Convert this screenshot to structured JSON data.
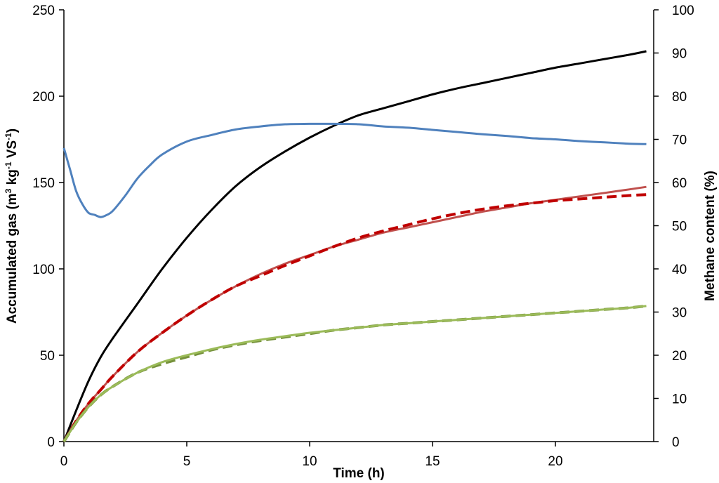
{
  "chart_data": {
    "type": "line",
    "title": "",
    "xlabel": "Time (h)",
    "ylabel": "Accumulated gas (m³ kg⁻¹ VS⁻¹)",
    "ylabel_parts": {
      "a": "Accumulated gas (m",
      "b": "3",
      "c": " kg",
      "d": "-1",
      "e": " VS",
      "f": "-1",
      "g": ")"
    },
    "y2label": "Methane content (%)",
    "xlim": [
      0,
      24
    ],
    "ylim": [
      0,
      250
    ],
    "y2lim": [
      0,
      100
    ],
    "x_ticks": [
      "0",
      "5",
      "10",
      "15",
      "20"
    ],
    "y_ticks": [
      "0",
      "50",
      "100",
      "150",
      "200",
      "250"
    ],
    "y2_ticks": [
      "0",
      "10",
      "20",
      "30",
      "40",
      "50",
      "60",
      "70",
      "80",
      "90",
      "100"
    ],
    "grid": false,
    "legend": "none",
    "series": [
      {
        "axis": "left",
        "style": "solid",
        "color": "#000000",
        "x": [
          0,
          0.5,
          1,
          1.5,
          2,
          3,
          4,
          5,
          6,
          7,
          8,
          9,
          10,
          11,
          12,
          13,
          14,
          15,
          16,
          17,
          18,
          19,
          20,
          21,
          22,
          23,
          23.7
        ],
        "y": [
          0,
          18,
          35,
          49,
          60,
          80,
          100,
          118,
          134,
          148,
          159,
          168,
          176,
          183,
          189,
          193,
          197,
          201,
          204.5,
          207.5,
          210.5,
          213.5,
          216.5,
          219,
          221.5,
          224,
          226
        ]
      },
      {
        "axis": "left",
        "style": "solid",
        "color": "#C0504D",
        "x": [
          0,
          0.5,
          1,
          1.5,
          2,
          3,
          4,
          5,
          6,
          7,
          8,
          9,
          10,
          11,
          12,
          13,
          14,
          15,
          16,
          17,
          18,
          19,
          20,
          21,
          22,
          23,
          23.7
        ],
        "y": [
          0,
          12,
          22,
          30,
          38,
          52,
          63,
          73,
          82,
          90,
          97,
          103,
          108,
          113,
          117,
          121,
          124,
          127,
          130,
          133,
          135.5,
          138,
          140,
          142,
          144,
          146,
          147.5
        ]
      },
      {
        "axis": "left",
        "style": "dashed",
        "color": "#C00000",
        "x": [
          0,
          0.5,
          1,
          1.5,
          2,
          3,
          4,
          5,
          6,
          7,
          8,
          9,
          10,
          11,
          12,
          13,
          14,
          15,
          16,
          17,
          18,
          19,
          20,
          21,
          22,
          23,
          23.7
        ],
        "y": [
          0,
          12,
          22,
          30,
          38,
          52,
          63,
          73,
          82,
          90,
          96,
          102,
          107.5,
          113,
          118,
          122,
          125.5,
          129,
          132,
          134.5,
          136.5,
          138,
          139.5,
          140.5,
          141.5,
          142.5,
          143
        ]
      },
      {
        "axis": "left",
        "style": "dashed",
        "color": "#76923C",
        "x": [
          0,
          0.5,
          1,
          1.5,
          2,
          3,
          4,
          5,
          6,
          7,
          8,
          9,
          10,
          11,
          12,
          13,
          14,
          15,
          16,
          17,
          18,
          19,
          20,
          21,
          22,
          23,
          23.7
        ],
        "y": [
          0,
          11,
          20,
          27,
          32,
          40,
          45,
          49,
          53,
          56,
          58.5,
          60.5,
          62.5,
          64.5,
          66,
          67.5,
          68.5,
          69.5,
          70.5,
          71.5,
          72.5,
          73.5,
          74.5,
          75.5,
          76.5,
          77.5,
          78.5
        ]
      },
      {
        "axis": "left",
        "style": "solid",
        "color": "#9BBB59",
        "x": [
          0,
          0.5,
          1,
          1.5,
          2,
          3,
          4,
          5,
          6,
          7,
          8,
          9,
          10,
          11,
          12,
          13,
          14,
          15,
          16,
          17,
          18,
          19,
          20,
          21,
          22,
          23,
          23.7
        ],
        "y": [
          0,
          11,
          20,
          27,
          32,
          40,
          46,
          50,
          53.5,
          56.5,
          59,
          61,
          63,
          64.5,
          66,
          67.5,
          68.5,
          69.5,
          70.5,
          71.5,
          72.5,
          73.5,
          74.5,
          75.5,
          76.5,
          77.5,
          78.5
        ]
      },
      {
        "axis": "right",
        "style": "solid",
        "color": "#4F81BD",
        "x": [
          0,
          0.25,
          0.5,
          0.75,
          1,
          1.25,
          1.5,
          1.75,
          2,
          2.5,
          3,
          3.5,
          4,
          5,
          6,
          7,
          8,
          9,
          10,
          11,
          12,
          13,
          14,
          15,
          16,
          17,
          18,
          19,
          20,
          21,
          22,
          23,
          23.7
        ],
        "y": [
          68,
          63,
          58,
          55,
          53,
          52.5,
          52,
          52.5,
          53.5,
          57,
          61,
          64,
          66.5,
          69.5,
          71,
          72.3,
          73,
          73.5,
          73.6,
          73.6,
          73.5,
          73,
          72.7,
          72.2,
          71.7,
          71.2,
          70.8,
          70.3,
          70,
          69.6,
          69.3,
          69,
          68.9
        ]
      }
    ]
  }
}
